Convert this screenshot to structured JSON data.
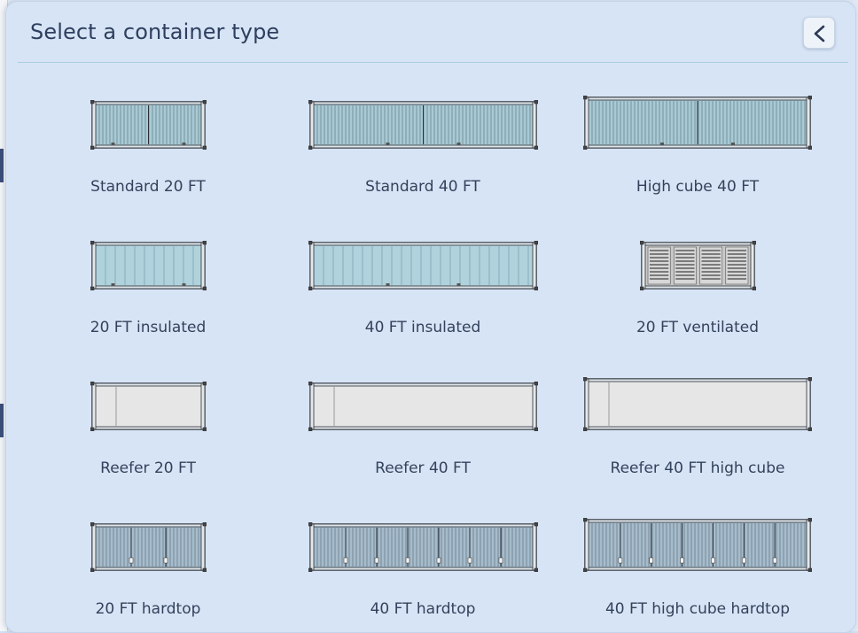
{
  "dialog": {
    "title": "Select a container type",
    "back_icon": "chevron-left-icon"
  },
  "containers": [
    {
      "label": "Standard 20 FT",
      "style": "standard",
      "size": "20"
    },
    {
      "label": "Standard 40 FT",
      "style": "standard",
      "size": "40"
    },
    {
      "label": "High cube 40 FT",
      "style": "standard",
      "size": "40hc"
    },
    {
      "label": "20 FT insulated",
      "style": "insulated",
      "size": "20"
    },
    {
      "label": "40 FT insulated",
      "style": "insulated",
      "size": "40"
    },
    {
      "label": "20 FT ventilated",
      "style": "ventilated",
      "size": "20"
    },
    {
      "label": "Reefer 20 FT",
      "style": "reefer",
      "size": "20"
    },
    {
      "label": "Reefer 40 FT",
      "style": "reefer",
      "size": "40"
    },
    {
      "label": "Reefer 40 FT high cube",
      "style": "reefer",
      "size": "40hc"
    },
    {
      "label": "20 FT hardtop",
      "style": "hardtop",
      "size": "20"
    },
    {
      "label": "40 FT hardtop",
      "style": "hardtop",
      "size": "40"
    },
    {
      "label": "40 FT high cube hardtop",
      "style": "hardtop",
      "size": "40hc"
    }
  ],
  "colors": {
    "standard_fill": "#a9c9d4",
    "insulated_fill": "#afd2dc",
    "ventilated_fill": "#c9c9c9",
    "reefer_fill": "#e6e6e6",
    "hardtop_fill": "#a7bccb",
    "outline": "#2a2f36"
  }
}
